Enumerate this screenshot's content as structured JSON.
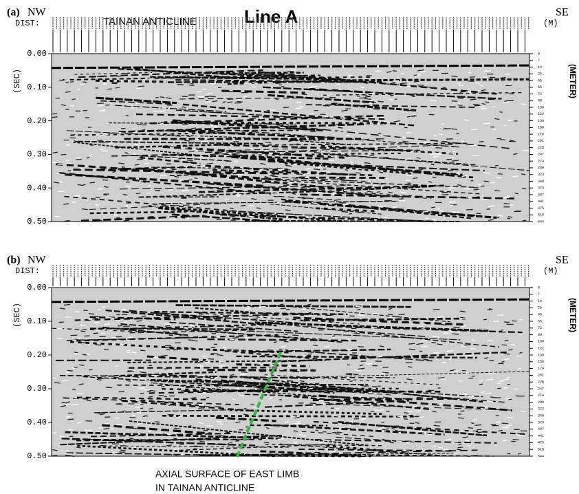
{
  "figure": {
    "title": "TAINAN ANTICLINE",
    "line_name": "Line A",
    "annotation": [
      "AXIAL SURFACE OF EAST LIMB",
      "IN TAINAN ANTICLINE"
    ],
    "panels": [
      {
        "label": "(a)",
        "left": "NW",
        "right": "SE",
        "dist": "DIST:",
        "dist_unit": "(M)",
        "y_label": "(SEC)",
        "y2_label": "(METER)"
      },
      {
        "label": "(b)",
        "left": "NW",
        "right": "SE",
        "dist": "DIST:",
        "dist_unit": "(M)",
        "y_label": "(SEC)",
        "y2_label": "(METER)"
      }
    ],
    "time_ticks": [
      "0.00",
      "0.10",
      "0.20",
      "0.30",
      "0.40",
      "0.50"
    ],
    "depth_ticks": [
      "0",
      "7",
      "14",
      "25",
      "45",
      "55",
      "72",
      "89",
      "106",
      "122",
      "139",
      "158",
      "179",
      "201",
      "225",
      "247",
      "274",
      "299",
      "323",
      "348",
      "373",
      "407",
      "441",
      "475",
      "510",
      "544"
    ]
  }
}
